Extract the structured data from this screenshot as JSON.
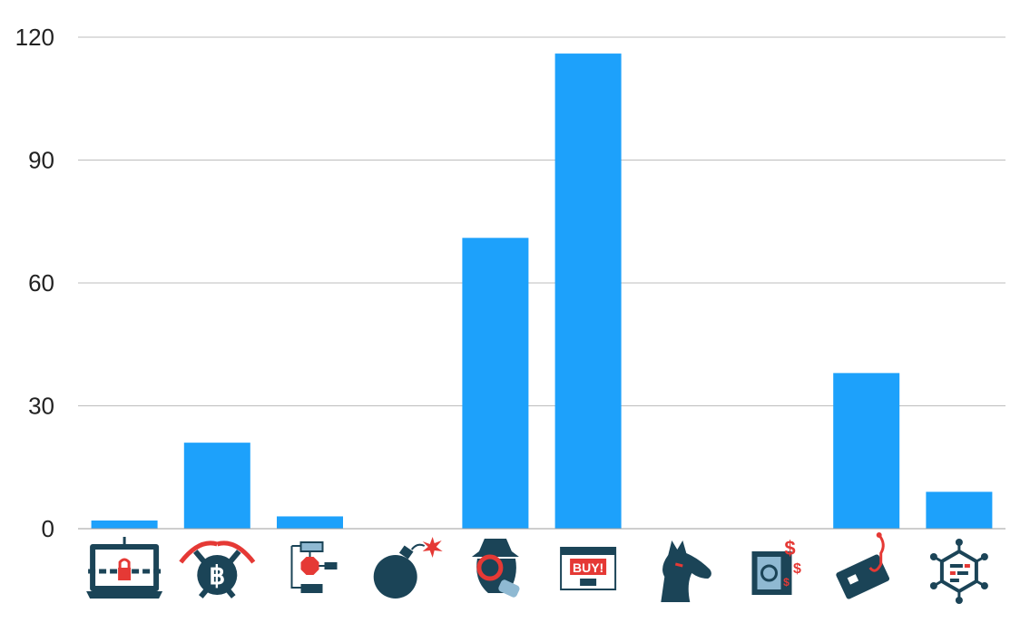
{
  "chart_data": {
    "type": "bar",
    "title": "",
    "xlabel": "",
    "ylabel": "",
    "categories": [
      {
        "icon": "ransomware-laptop-icon"
      },
      {
        "icon": "bitcoin-mining-icon"
      },
      {
        "icon": "flowchart-stop-icon"
      },
      {
        "icon": "bomb-icon"
      },
      {
        "icon": "spy-hacker-icon"
      },
      {
        "icon": "buy-popup-adware-icon"
      },
      {
        "icon": "trojan-horse-icon"
      },
      {
        "icon": "money-safe-icon"
      },
      {
        "icon": "phishing-card-icon"
      },
      {
        "icon": "virus-chip-icon"
      }
    ],
    "values": [
      2,
      21,
      3,
      0,
      71,
      116,
      0,
      0,
      38,
      9
    ],
    "ylim": [
      0,
      120
    ],
    "yticks": [
      0,
      30,
      60,
      90,
      120
    ],
    "ytick_labels": [
      "0",
      "30",
      "60",
      "90",
      "120"
    ],
    "grid": true,
    "legend": "none",
    "colors": {
      "bar": "#1DA1FB",
      "grid": "#BDBDBD",
      "axis": "#9E9E9E",
      "icon_dark": "#1B4457",
      "icon_red": "#E53935",
      "icon_light": "#8FB9D2"
    }
  }
}
